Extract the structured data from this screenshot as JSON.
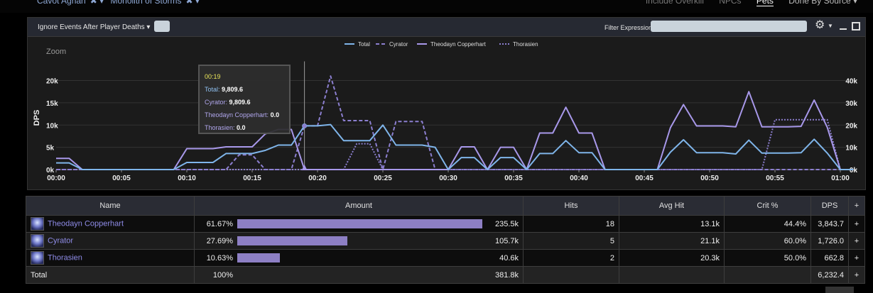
{
  "topbar": {
    "left": [
      "Cavot Aghan",
      "Monolith of Storms"
    ],
    "right": [
      "Include Overkill",
      "NPCs",
      "Pets"
    ],
    "active": "Pets",
    "dropdown": "Done By Source"
  },
  "toolbar": {
    "dropdown_label": "Ignore Events After Player Deaths",
    "filter_label": "Filter Expression:",
    "filter_value": ""
  },
  "chart_data": {
    "type": "line",
    "zoom_label": "Zoom",
    "ylabel": "DPS",
    "ylim": [
      0,
      22000
    ],
    "left_ticks": [
      "0k",
      "5k",
      "10k",
      "15k",
      "20k"
    ],
    "right_ticks": [
      "0k",
      "10k",
      "20k",
      "30k",
      "40k"
    ],
    "x_ticks": [
      "00:00",
      "00:05",
      "00:10",
      "00:15",
      "00:20",
      "00:25",
      "00:30",
      "00:35",
      "00:40",
      "00:45",
      "00:50",
      "00:55",
      "01:00"
    ],
    "legend": [
      "Total",
      "Cyrator",
      "Theodayn Copperhart",
      "Thorasien"
    ],
    "series": [
      {
        "name": "Total",
        "color": "#7fb5ea",
        "values": [
          1500,
          1500,
          0,
          0,
          0,
          0,
          0,
          0,
          0,
          0,
          1600,
          1600,
          1600,
          3600,
          3600,
          3600,
          4300,
          5500,
          5500,
          9810,
          9810,
          10100,
          6500,
          6500,
          6500,
          10000,
          5500,
          5500,
          5500,
          5000,
          0,
          2700,
          2700,
          0,
          2700,
          2700,
          0,
          3600,
          3600,
          6500,
          3800,
          3800,
          0,
          0,
          0,
          0,
          0,
          3900,
          6700,
          3800,
          3800,
          3800,
          3500,
          6600,
          3700,
          3700,
          3700,
          3800,
          6800,
          3700,
          0,
          0
        ]
      },
      {
        "name": "Cyrator",
        "color": "#8c7fd0",
        "values": [
          0,
          0,
          0,
          0,
          0,
          0,
          0,
          0,
          0,
          0,
          0,
          0,
          0,
          0,
          3300,
          3300,
          0,
          0,
          0,
          9810,
          9810,
          21000,
          11000,
          11000,
          11000,
          0,
          10800,
          10800,
          10800,
          0,
          0,
          0,
          0,
          0,
          0,
          0,
          0,
          0,
          0,
          0,
          0,
          0,
          0,
          0,
          0,
          0,
          0,
          0,
          0,
          0,
          0,
          0,
          0,
          0,
          0,
          0,
          0,
          0,
          0,
          0,
          0,
          0
        ]
      },
      {
        "name": "Theodayn Copperhart",
        "color": "#a898ea",
        "values": [
          2500,
          2500,
          0,
          0,
          0,
          0,
          0,
          0,
          0,
          0,
          4700,
          4700,
          4700,
          5100,
          5100,
          5100,
          8000,
          9000,
          9000,
          0,
          0,
          0,
          0,
          0,
          0,
          0,
          0,
          0,
          0,
          0,
          0,
          5100,
          5100,
          0,
          5000,
          5000,
          0,
          8200,
          8200,
          14000,
          8200,
          8200,
          0,
          0,
          0,
          0,
          0,
          9400,
          14600,
          9800,
          9800,
          9800,
          9600,
          17500,
          9600,
          9600,
          9600,
          9700,
          15600,
          9500,
          0,
          0
        ]
      },
      {
        "name": "Thorasien",
        "color": "#8c7fd0",
        "values": [
          0,
          0,
          0,
          0,
          0,
          0,
          0,
          0,
          0,
          0,
          0,
          0,
          0,
          0,
          0,
          0,
          0,
          0,
          0,
          0,
          0,
          0,
          0,
          5800,
          5800,
          0,
          0,
          0,
          0,
          0,
          0,
          0,
          0,
          0,
          0,
          0,
          0,
          0,
          0,
          0,
          0,
          0,
          0,
          0,
          0,
          0,
          0,
          0,
          0,
          0,
          0,
          0,
          0,
          0,
          0,
          11200,
          11200,
          11200,
          11200,
          11200,
          0,
          0
        ]
      }
    ],
    "cursor_index": 19
  },
  "tooltip": {
    "time": "00:19",
    "rows": [
      {
        "label": "Total:",
        "value": "9,809.6",
        "color": "#8fc0f0"
      },
      {
        "label": "Cyrator:",
        "value": "9,809.6",
        "color": "#b0a6ec"
      },
      {
        "label": "Theodayn Copperhart:",
        "value": "0.0",
        "color": "#b0a6ec"
      },
      {
        "label": "Thorasien:",
        "value": "0.0",
        "color": "#b0a6ec"
      }
    ]
  },
  "table": {
    "columns": [
      "Name",
      "Amount",
      "Hits",
      "Avg Hit",
      "Crit %",
      "DPS",
      "+"
    ],
    "rows": [
      {
        "name": "Theodayn Copperhart",
        "pct": "61.67%",
        "fraction": 0.6167,
        "amount": "235.5k",
        "hits": "18",
        "avg": "13.1k",
        "crit": "44.4%",
        "dps": "3,843.7",
        "plus": "+"
      },
      {
        "name": "Cyrator",
        "pct": "27.69%",
        "fraction": 0.2769,
        "amount": "105.7k",
        "hits": "5",
        "avg": "21.1k",
        "crit": "60.0%",
        "dps": "1,726.0",
        "plus": "+"
      },
      {
        "name": "Thorasien",
        "pct": "10.63%",
        "fraction": 0.1063,
        "amount": "40.6k",
        "hits": "2",
        "avg": "20.3k",
        "crit": "50.0%",
        "dps": "662.8",
        "plus": "+"
      }
    ],
    "total": {
      "name": "Total",
      "pct": "100%",
      "amount": "381.8k",
      "hits": "",
      "avg": "",
      "crit": "",
      "dps": "6,232.4",
      "plus": "+"
    }
  }
}
